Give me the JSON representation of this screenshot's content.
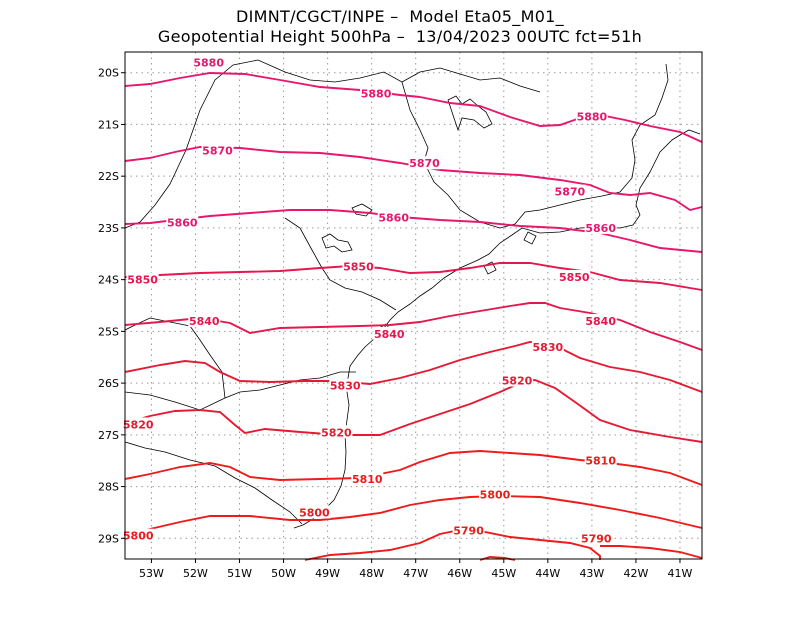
{
  "title": {
    "line1": "DIMNT/CGCT/INPE –  Model Eta05_M01_",
    "line2": "Geopotential Height 500hPa –  13/04/2023 00UTC fct=51h"
  },
  "axes": {
    "lon_ticks": [
      "53W",
      "52W",
      "51W",
      "50W",
      "49W",
      "48W",
      "47W",
      "46W",
      "45W",
      "44W",
      "43W",
      "42W",
      "41W"
    ],
    "lat_ticks": [
      "20S",
      "21S",
      "22S",
      "23S",
      "24S",
      "25S",
      "26S",
      "27S",
      "28S",
      "29S"
    ]
  },
  "map": {
    "lon_range": [
      -53.6,
      -40.5
    ],
    "lat_range": [
      -29.4,
      -19.6
    ],
    "grid": "dotted",
    "coastline_color": "#000000"
  },
  "contours": [
    {
      "level": 5880,
      "color": "#e8176e",
      "labels": [
        {
          "text": "5880",
          "lon": -51.7,
          "lat": -19.8
        },
        {
          "text": "5880",
          "lon": -47.9,
          "lat": -20.4
        },
        {
          "text": "5880",
          "lon": -43.0,
          "lat": -20.85
        }
      ]
    },
    {
      "level": 5870,
      "color": "#e8176e",
      "labels": [
        {
          "text": "5870",
          "lon": -51.5,
          "lat": -21.5
        },
        {
          "text": "5870",
          "lon": -46.8,
          "lat": -21.75
        },
        {
          "text": "5870",
          "lon": -43.5,
          "lat": -22.3
        }
      ]
    },
    {
      "level": 5860,
      "color": "#e8176e",
      "labels": [
        {
          "text": "5860",
          "lon": -52.3,
          "lat": -22.9
        },
        {
          "text": "5860",
          "lon": -47.5,
          "lat": -22.8
        },
        {
          "text": "5860",
          "lon": -42.8,
          "lat": -23.0
        }
      ]
    },
    {
      "level": 5850,
      "color": "#e4174e",
      "labels": [
        {
          "text": "5850",
          "lon": -53.2,
          "lat": -24.0
        },
        {
          "text": "5850",
          "lon": -48.3,
          "lat": -23.75
        },
        {
          "text": "5850",
          "lon": -43.4,
          "lat": -23.95
        }
      ]
    },
    {
      "level": 5840,
      "color": "#e4174e",
      "labels": [
        {
          "text": "5840",
          "lon": -51.8,
          "lat": -24.8
        },
        {
          "text": "5840",
          "lon": -47.6,
          "lat": -25.05
        },
        {
          "text": "5840",
          "lon": -42.8,
          "lat": -24.8
        }
      ]
    },
    {
      "level": 5830,
      "color": "#e61a33",
      "labels": [
        {
          "text": "5830",
          "lon": -48.6,
          "lat": -26.05
        },
        {
          "text": "5830",
          "lon": -44.0,
          "lat": -25.3
        }
      ]
    },
    {
      "level": 5820,
      "color": "#e61a33",
      "labels": [
        {
          "text": "5820",
          "lon": -53.3,
          "lat": -26.8
        },
        {
          "text": "5820",
          "lon": -48.8,
          "lat": -26.95
        },
        {
          "text": "5820",
          "lon": -44.7,
          "lat": -25.95
        }
      ]
    },
    {
      "level": 5810,
      "color": "#ef1a1a",
      "labels": [
        {
          "text": "5810",
          "lon": -48.1,
          "lat": -27.85
        },
        {
          "text": "5810",
          "lon": -42.8,
          "lat": -27.5
        }
      ]
    },
    {
      "level": 5800,
      "color": "#ef1a1a",
      "labels": [
        {
          "text": "5800",
          "lon": -53.3,
          "lat": -28.95
        },
        {
          "text": "5800",
          "lon": -49.3,
          "lat": -28.5
        },
        {
          "text": "5800",
          "lon": -45.2,
          "lat": -28.15
        }
      ]
    },
    {
      "level": 5790,
      "color": "#ef1a1a",
      "labels": [
        {
          "text": "5790",
          "lon": -45.8,
          "lat": -28.85
        },
        {
          "text": "5790",
          "lon": -42.9,
          "lat": -29.0
        }
      ]
    }
  ]
}
